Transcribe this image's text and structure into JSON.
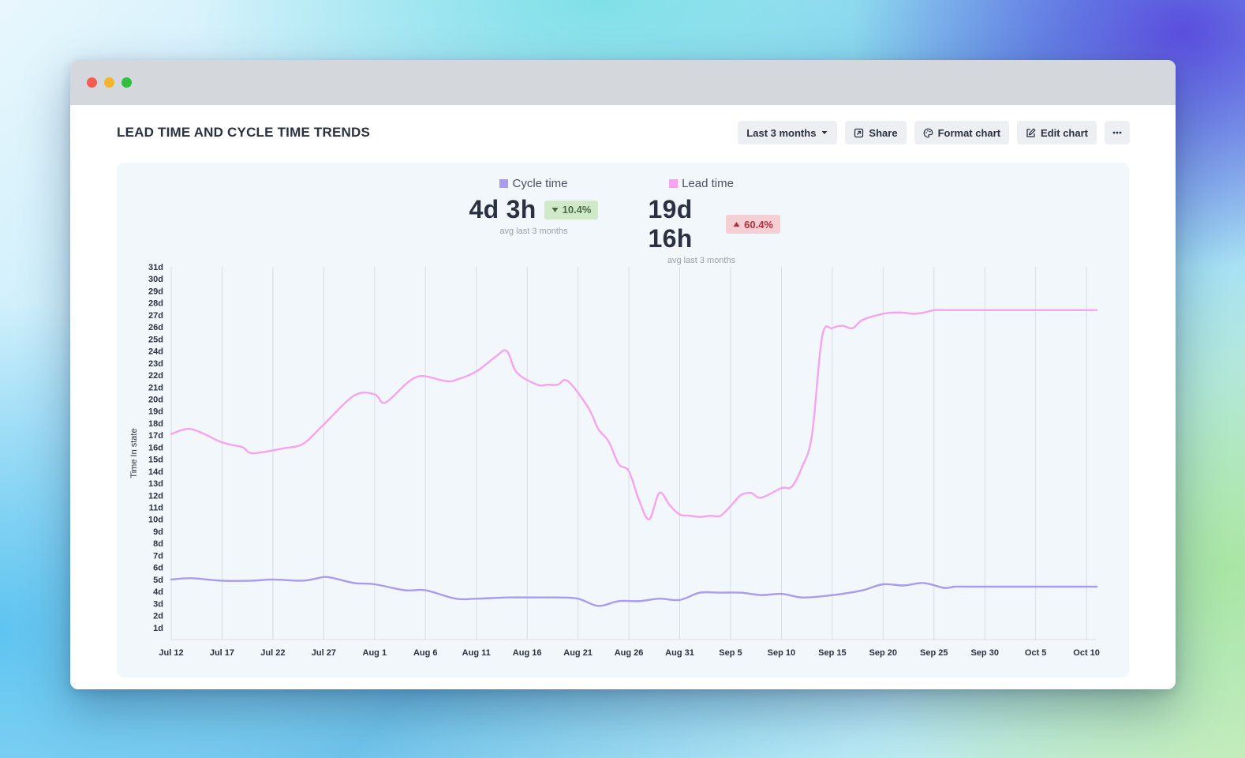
{
  "window": {
    "controls": [
      "close",
      "minimize",
      "maximize"
    ]
  },
  "header": {
    "title": "LEAD TIME AND CYCLE TIME TRENDS",
    "range_label": "Last 3 months",
    "share_label": "Share",
    "format_label": "Format chart",
    "edit_label": "Edit chart",
    "more_icon": "ellipsis-icon"
  },
  "kpis": {
    "cycle": {
      "label": "Cycle time",
      "value": "4d 3h",
      "change": "10.4%",
      "direction": "down",
      "caption": "avg last 3 months",
      "color": "#a99af2"
    },
    "lead": {
      "label": "Lead time",
      "value": "19d 16h",
      "change": "60.4%",
      "direction": "up",
      "caption": "avg last 3 months",
      "color": "#f7a3ef"
    }
  },
  "colors": {
    "good_badge": "#cfe9c9",
    "bad_badge": "#f4cfd3",
    "grid": "#d9dee5"
  },
  "chart_data": {
    "type": "line",
    "ylabel": "Time In state",
    "y_ticks": [
      "1d",
      "2d",
      "3d",
      "4d",
      "5d",
      "6d",
      "7d",
      "8d",
      "9d",
      "10d",
      "11d",
      "12d",
      "13d",
      "14d",
      "15d",
      "16d",
      "17d",
      "18d",
      "19d",
      "20d",
      "21d",
      "22d",
      "23d",
      "24d",
      "25d",
      "26d",
      "27d",
      "28d",
      "29d",
      "30d",
      "31d"
    ],
    "ylim": [
      0,
      31
    ],
    "x_ticks": [
      "Jul 12",
      "Jul 17",
      "Jul 22",
      "Jul 27",
      "Aug 1",
      "Aug 6",
      "Aug 11",
      "Aug 16",
      "Aug 21",
      "Aug 26",
      "Aug 31",
      "Sep 5",
      "Sep 10",
      "Sep 15",
      "Sep 20",
      "Sep 25",
      "Sep 30",
      "Oct 5",
      "Oct 10"
    ],
    "x_unit": "days after Jul 12",
    "xlim": [
      0,
      91
    ],
    "grid": "vertical",
    "series": [
      {
        "name": "Lead time",
        "color": "#f7a3ef",
        "x": [
          0,
          2,
          5,
          7,
          8,
          11,
          13,
          15,
          18,
          20,
          21,
          23,
          24,
          25,
          27,
          28,
          30,
          32,
          33,
          34,
          36,
          37,
          38,
          39,
          41,
          42,
          43,
          44,
          45,
          46,
          47,
          48,
          49,
          50,
          51,
          52,
          53,
          54,
          55,
          56,
          57,
          58,
          60,
          61,
          62,
          63,
          64,
          65,
          66,
          67,
          68,
          70,
          71,
          72,
          73,
          74,
          75,
          76,
          77,
          78,
          79,
          80,
          81,
          82,
          83,
          84,
          85,
          86,
          87,
          88,
          89,
          90,
          91
        ],
        "values": [
          17.1,
          17.5,
          16.4,
          16.0,
          15.5,
          15.9,
          16.3,
          17.9,
          20.3,
          20.4,
          19.7,
          21.2,
          21.8,
          21.9,
          21.5,
          21.6,
          22.3,
          23.6,
          24.0,
          22.2,
          21.2,
          21.2,
          21.2,
          21.5,
          19.3,
          17.5,
          16.5,
          14.6,
          14.0,
          11.6,
          10.0,
          12.2,
          11.2,
          10.4,
          10.3,
          10.2,
          10.3,
          10.3,
          11.1,
          12.0,
          12.2,
          11.8,
          12.6,
          12.7,
          14.3,
          17.0,
          25.2,
          25.9,
          26.1,
          25.9,
          26.6,
          27.1,
          27.2,
          27.2,
          27.1,
          27.2,
          27.4,
          27.4,
          27.4,
          27.4,
          27.4,
          27.4,
          27.4,
          27.4,
          27.4,
          27.4,
          27.4,
          27.4,
          27.4,
          27.4,
          27.4,
          27.4,
          27.4
        ]
      },
      {
        "name": "Cycle time",
        "color": "#a99af2",
        "x": [
          0,
          2,
          5,
          8,
          10,
          13,
          15,
          16,
          18,
          20,
          23,
          25,
          28,
          30,
          33,
          36,
          38,
          40,
          42,
          44,
          46,
          48,
          50,
          52,
          54,
          56,
          58,
          60,
          62,
          64,
          66,
          68,
          70,
          72,
          74,
          76,
          77,
          78,
          79,
          80,
          81,
          82,
          83,
          84,
          85,
          86,
          87,
          88,
          89,
          90,
          91
        ],
        "values": [
          5.0,
          5.1,
          4.9,
          4.9,
          5.0,
          4.9,
          5.2,
          5.1,
          4.7,
          4.6,
          4.1,
          4.1,
          3.4,
          3.4,
          3.5,
          3.5,
          3.5,
          3.4,
          2.8,
          3.2,
          3.2,
          3.4,
          3.3,
          3.9,
          3.9,
          3.9,
          3.7,
          3.8,
          3.5,
          3.6,
          3.8,
          4.1,
          4.6,
          4.5,
          4.7,
          4.3,
          4.4,
          4.4,
          4.4,
          4.4,
          4.4,
          4.4,
          4.4,
          4.4,
          4.4,
          4.4,
          4.4,
          4.4,
          4.4,
          4.4,
          4.4
        ]
      }
    ]
  }
}
